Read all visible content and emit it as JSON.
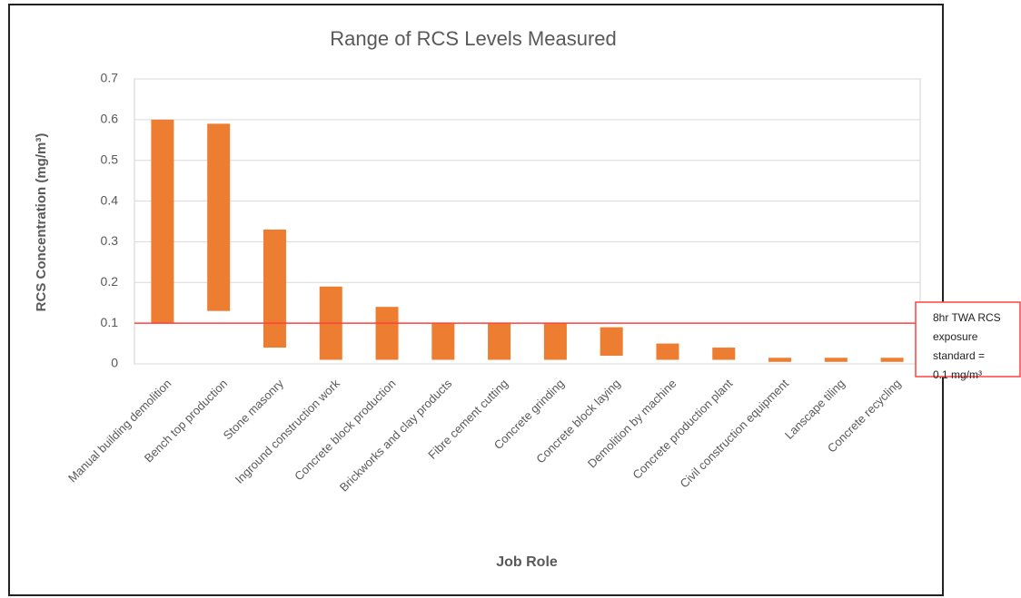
{
  "chart_data": {
    "type": "floating_bar",
    "title": "Range of RCS Levels Measured",
    "x_label": "Job Role",
    "y_label": "RCS Concentration (mg/m³)",
    "categories": [
      "Manual building demolition",
      "Bench top production",
      "Stone masonry",
      "Inground construction work",
      "Concrete block production",
      "Brickworks and clay products",
      "Fibre cement cutting",
      "Concrete grinding",
      "Concrete block laying",
      "Demolition by machine",
      "Concrete production plant",
      "Civil construction equipment",
      "Lanscape tiling",
      "Concrete recycling"
    ],
    "low": [
      0.1,
      0.13,
      0.04,
      0.01,
      0.01,
      0.01,
      0.01,
      0.01,
      0.02,
      0.01,
      0.01,
      0.005,
      0.005,
      0.005
    ],
    "high": [
      0.6,
      0.59,
      0.33,
      0.19,
      0.14,
      0.1,
      0.1,
      0.1,
      0.09,
      0.05,
      0.04,
      0.015,
      0.015,
      0.015
    ],
    "color": "#ed7d31",
    "ylim": [
      0,
      0.7
    ],
    "yticks": [
      0,
      0.1,
      0.2,
      0.3,
      0.4,
      0.5,
      0.6,
      0.7
    ],
    "grid": true,
    "reference_line": {
      "value": 0.1,
      "color": "#ff4040",
      "annotation": [
        "8hr TWA RCS",
        "exposure",
        "standard =",
        "0.1 mg/m³"
      ]
    }
  }
}
